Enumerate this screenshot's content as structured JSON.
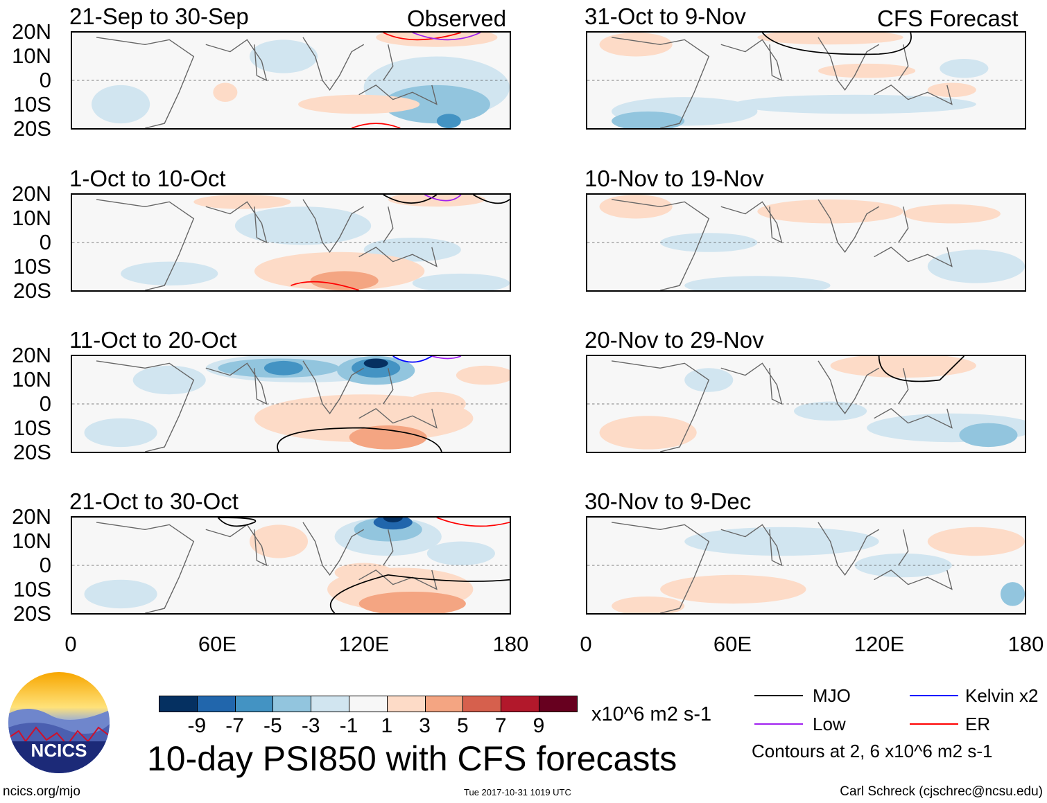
{
  "header": {
    "observed_label": "Observed",
    "forecast_label": "CFS Forecast"
  },
  "panels": [
    {
      "title": "21-Sep to 30-Sep",
      "column": "observed"
    },
    {
      "title": "1-Oct to 10-Oct",
      "column": "observed"
    },
    {
      "title": "11-Oct to 20-Oct",
      "column": "observed"
    },
    {
      "title": "21-Oct to 30-Oct",
      "column": "observed"
    },
    {
      "title": "31-Oct to 9-Nov",
      "column": "forecast"
    },
    {
      "title": "10-Nov to 19-Nov",
      "column": "forecast"
    },
    {
      "title": "20-Nov to 29-Nov",
      "column": "forecast"
    },
    {
      "title": "30-Nov to 9-Dec",
      "column": "forecast"
    }
  ],
  "axes": {
    "lat_ticks": [
      "20N",
      "10N",
      "0",
      "10S",
      "20S"
    ],
    "lon_ticks": [
      "0",
      "60E",
      "120E",
      "180"
    ]
  },
  "colorbar": {
    "ticks": [
      "-9",
      "-7",
      "-5",
      "-3",
      "-1",
      "1",
      "3",
      "5",
      "7",
      "9"
    ],
    "units": "x10^6 m2 s-1",
    "colors": [
      "#053061",
      "#2166ac",
      "#4393c3",
      "#92c5de",
      "#d1e5f0",
      "#f7f7f7",
      "#fddbc7",
      "#f4a582",
      "#d6604d",
      "#b2182b",
      "#67001f"
    ]
  },
  "legend": {
    "items": [
      {
        "label": "MJO",
        "color": "#000000"
      },
      {
        "label": "Low",
        "color": "#a020f0"
      },
      {
        "label": "Kelvin x2",
        "color": "#0000ff"
      },
      {
        "label": "ER",
        "color": "#ff0000"
      }
    ],
    "contour_note": "Contours at 2, 6 x10^6 m2 s-1"
  },
  "title": "10-day PSI850 with CFS forecasts",
  "logo_text": "NCICS",
  "footer": {
    "url": "ncics.org/mjo",
    "timestamp": "Tue 2017-10-31 1019 UTC",
    "credit": "Carl Schreck (cjschrec@ncsu.edu)"
  }
}
